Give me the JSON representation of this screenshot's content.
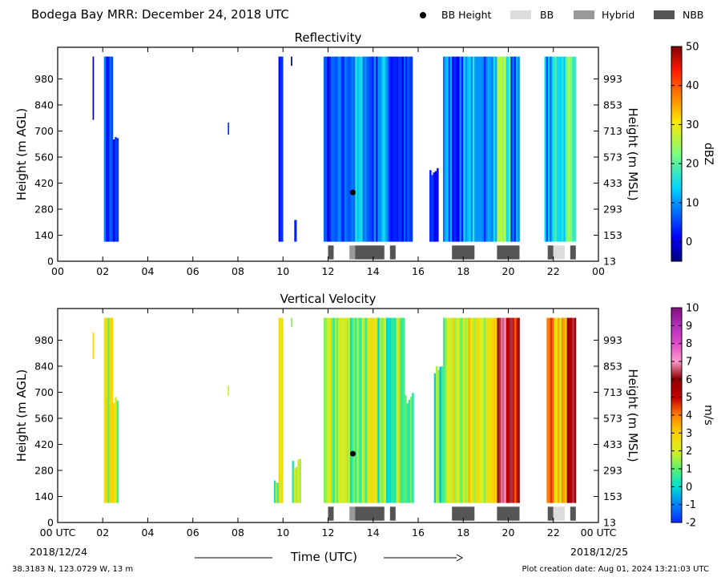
{
  "header": {
    "title": "Bodega Bay MRR:  December 24, 2018 UTC",
    "legend": [
      {
        "label": "BB Height",
        "marker": "dot",
        "color": "#000000"
      },
      {
        "label": "BB",
        "marker": "box",
        "color": "#dcdcdc"
      },
      {
        "label": "Hybrid",
        "marker": "box",
        "color": "#999999"
      },
      {
        "label": "NBB",
        "marker": "box",
        "color": "#555555"
      }
    ]
  },
  "footer": {
    "coords": "38.3183 N, 123.0729 W, 13 m",
    "creation": "Plot creation date: Aug 01, 2024 13:21:03 UTC",
    "xlabel": "Time (UTC)",
    "start_label": "00 UTC",
    "start_date": "2018/12/24",
    "end_label": "00 UTC",
    "end_date": "2018/12/25"
  },
  "chart_data": [
    {
      "type": "heatmap",
      "title": "Reflectivity",
      "ylabel": "Height (m AGL)",
      "y2label": "Height (m MSL)",
      "colorbar_label": "dBZ",
      "colorbar_ticks": [
        "0",
        "10",
        "20",
        "30",
        "40",
        "50"
      ],
      "colorbar_range": [
        -5,
        50
      ],
      "colormap": "jet",
      "xlim": [
        0,
        24
      ],
      "ylim": [
        0,
        1150
      ],
      "x_ticks": [
        "00",
        "02",
        "04",
        "06",
        "08",
        "10",
        "12",
        "14",
        "16",
        "18",
        "20",
        "22",
        "00"
      ],
      "y_ticks": [
        "0",
        "140",
        "280",
        "420",
        "560",
        "700",
        "840",
        "980"
      ],
      "y2_ticks": [
        "13",
        "153",
        "293",
        "433",
        "573",
        "713",
        "853",
        "993"
      ],
      "bb_height": [
        {
          "x": 13.1,
          "y": 370
        }
      ],
      "bb_bars": [
        {
          "start": 12.0,
          "end": 12.25,
          "class": "NBB"
        },
        {
          "start": 12.95,
          "end": 13.2,
          "class": "Hybrid"
        },
        {
          "start": 13.2,
          "end": 14.5,
          "class": "NBB"
        },
        {
          "start": 14.75,
          "end": 15.0,
          "class": "NBB"
        },
        {
          "start": 17.5,
          "end": 18.5,
          "class": "NBB"
        },
        {
          "start": 19.5,
          "end": 20.5,
          "class": "NBB"
        },
        {
          "start": 21.75,
          "end": 22.0,
          "class": "NBB"
        },
        {
          "start": 22.0,
          "end": 22.5,
          "class": "BB"
        },
        {
          "start": 22.75,
          "end": 23.0,
          "class": "NBB"
        }
      ],
      "segments": [
        {
          "start": 1.55,
          "end": 1.6,
          "ylo": 760,
          "yhi": 1100,
          "v": 2
        },
        {
          "start": 2.05,
          "end": 2.45,
          "ylo": 105,
          "yhi": 1100,
          "v": 5
        },
        {
          "start": 2.45,
          "end": 2.7,
          "ylo": 105,
          "yhi": 700,
          "v": 2
        },
        {
          "start": 7.55,
          "end": 7.6,
          "ylo": 680,
          "yhi": 760,
          "v": 1
        },
        {
          "start": 9.8,
          "end": 10.0,
          "ylo": 105,
          "yhi": 1100,
          "v": 2
        },
        {
          "start": 10.35,
          "end": 10.4,
          "ylo": 1050,
          "yhi": 1100,
          "v": 1
        },
        {
          "start": 10.5,
          "end": 10.6,
          "ylo": 105,
          "yhi": 250,
          "v": 1
        },
        {
          "start": 11.8,
          "end": 12.2,
          "ylo": 105,
          "yhi": 1100,
          "v": 3
        },
        {
          "start": 12.2,
          "end": 12.8,
          "ylo": 105,
          "yhi": 1100,
          "v": 5
        },
        {
          "start": 12.8,
          "end": 13.2,
          "ylo": 105,
          "yhi": 1100,
          "v": 9
        },
        {
          "start": 13.2,
          "end": 13.7,
          "ylo": 105,
          "yhi": 1100,
          "v": 12
        },
        {
          "start": 13.7,
          "end": 14.2,
          "ylo": 105,
          "yhi": 1100,
          "v": 6
        },
        {
          "start": 14.2,
          "end": 14.7,
          "ylo": 105,
          "yhi": 1100,
          "v": 11
        },
        {
          "start": 14.7,
          "end": 15.2,
          "ylo": 105,
          "yhi": 1100,
          "v": 4
        },
        {
          "start": 15.2,
          "end": 15.75,
          "ylo": 105,
          "yhi": 1100,
          "v": 3
        },
        {
          "start": 16.5,
          "end": 16.9,
          "ylo": 105,
          "yhi": 520,
          "v": 3
        },
        {
          "start": 17.1,
          "end": 17.5,
          "ylo": 105,
          "yhi": 1100,
          "v": 9
        },
        {
          "start": 17.5,
          "end": 18.0,
          "ylo": 105,
          "yhi": 1100,
          "v": 5
        },
        {
          "start": 18.0,
          "end": 18.5,
          "ylo": 105,
          "yhi": 1100,
          "v": 13
        },
        {
          "start": 18.5,
          "end": 19.0,
          "ylo": 105,
          "yhi": 1100,
          "v": 6
        },
        {
          "start": 19.0,
          "end": 19.5,
          "ylo": 105,
          "yhi": 1100,
          "v": 14
        },
        {
          "start": 19.5,
          "end": 19.9,
          "ylo": 105,
          "yhi": 1100,
          "v": 25
        },
        {
          "start": 19.9,
          "end": 20.1,
          "ylo": 105,
          "yhi": 1100,
          "v": 17
        },
        {
          "start": 20.1,
          "end": 20.5,
          "ylo": 105,
          "yhi": 1100,
          "v": 8
        },
        {
          "start": 21.6,
          "end": 22.0,
          "ylo": 105,
          "yhi": 1100,
          "v": 10
        },
        {
          "start": 22.0,
          "end": 22.6,
          "ylo": 105,
          "yhi": 1100,
          "v": 17
        },
        {
          "start": 22.6,
          "end": 23.0,
          "ylo": 105,
          "yhi": 1100,
          "v": 22
        }
      ]
    },
    {
      "type": "heatmap",
      "title": "Vertical Velocity",
      "ylabel": "Height (m AGL)",
      "y2label": "Height (m MSL)",
      "colorbar_label": "m/s",
      "colorbar_ticks": [
        "-2",
        "-1",
        "0",
        "1",
        "2",
        "3",
        "4",
        "5",
        "6",
        "7",
        "8",
        "9",
        "10"
      ],
      "colorbar_range": [
        -2,
        10
      ],
      "colormap": "velocity",
      "xlim": [
        0,
        24
      ],
      "ylim": [
        0,
        1150
      ],
      "x_ticks": [
        "00 UTC",
        "02",
        "04",
        "06",
        "08",
        "10",
        "12",
        "14",
        "16",
        "18",
        "20",
        "22",
        "00 UTC"
      ],
      "y_ticks": [
        "0",
        "140",
        "280",
        "420",
        "560",
        "700",
        "840",
        "980"
      ],
      "y2_ticks": [
        "13",
        "153",
        "293",
        "433",
        "573",
        "713",
        "853",
        "993"
      ],
      "bb_height": [
        {
          "x": 13.1,
          "y": 370
        }
      ],
      "bb_bars": [
        {
          "start": 12.0,
          "end": 12.25,
          "class": "NBB"
        },
        {
          "start": 12.95,
          "end": 13.2,
          "class": "Hybrid"
        },
        {
          "start": 13.2,
          "end": 14.5,
          "class": "NBB"
        },
        {
          "start": 14.75,
          "end": 15.0,
          "class": "NBB"
        },
        {
          "start": 17.5,
          "end": 18.5,
          "class": "NBB"
        },
        {
          "start": 19.5,
          "end": 20.5,
          "class": "NBB"
        },
        {
          "start": 21.75,
          "end": 22.0,
          "class": "NBB"
        },
        {
          "start": 22.0,
          "end": 22.5,
          "class": "BB"
        },
        {
          "start": 22.75,
          "end": 23.0,
          "class": "NBB"
        }
      ],
      "segments": [
        {
          "start": 1.55,
          "end": 1.6,
          "ylo": 880,
          "yhi": 1030,
          "v": 1.8
        },
        {
          "start": 2.05,
          "end": 2.45,
          "ylo": 105,
          "yhi": 1100,
          "v": 2.0
        },
        {
          "start": 2.45,
          "end": 2.7,
          "ylo": 105,
          "yhi": 700,
          "v": 1.5
        },
        {
          "start": 7.55,
          "end": 7.6,
          "ylo": 680,
          "yhi": 760,
          "v": 1.0
        },
        {
          "start": 9.6,
          "end": 9.8,
          "ylo": 105,
          "yhi": 250,
          "v": 0.8
        },
        {
          "start": 9.8,
          "end": 10.0,
          "ylo": 105,
          "yhi": 1100,
          "v": 2.3
        },
        {
          "start": 10.35,
          "end": 10.4,
          "ylo": 1050,
          "yhi": 1100,
          "v": 1.5
        },
        {
          "start": 10.4,
          "end": 10.8,
          "ylo": 105,
          "yhi": 350,
          "v": 1.2
        },
        {
          "start": 11.8,
          "end": 12.3,
          "ylo": 105,
          "yhi": 1100,
          "v": 1.3
        },
        {
          "start": 12.3,
          "end": 12.9,
          "ylo": 105,
          "yhi": 1100,
          "v": 1.8
        },
        {
          "start": 12.9,
          "end": 13.5,
          "ylo": 105,
          "yhi": 1100,
          "v": 1.2
        },
        {
          "start": 13.5,
          "end": 14.2,
          "ylo": 105,
          "yhi": 1100,
          "v": 1.6
        },
        {
          "start": 14.2,
          "end": 14.8,
          "ylo": 105,
          "yhi": 1100,
          "v": 1.0
        },
        {
          "start": 14.8,
          "end": 15.4,
          "ylo": 105,
          "yhi": 1100,
          "v": 1.5
        },
        {
          "start": 15.4,
          "end": 15.8,
          "ylo": 105,
          "yhi": 700,
          "v": 0.6
        },
        {
          "start": 16.7,
          "end": 17.1,
          "ylo": 105,
          "yhi": 850,
          "v": 0.5
        },
        {
          "start": 17.1,
          "end": 17.6,
          "ylo": 105,
          "yhi": 1100,
          "v": 1.8
        },
        {
          "start": 17.6,
          "end": 18.3,
          "ylo": 105,
          "yhi": 1100,
          "v": 2.4
        },
        {
          "start": 18.3,
          "end": 19.0,
          "ylo": 105,
          "yhi": 1100,
          "v": 1.6
        },
        {
          "start": 19.0,
          "end": 19.5,
          "ylo": 105,
          "yhi": 1100,
          "v": 2.6
        },
        {
          "start": 19.5,
          "end": 19.9,
          "ylo": 105,
          "yhi": 1100,
          "v": 5.8
        },
        {
          "start": 19.9,
          "end": 20.5,
          "ylo": 105,
          "yhi": 1100,
          "v": 5.2
        },
        {
          "start": 21.7,
          "end": 22.1,
          "ylo": 105,
          "yhi": 1100,
          "v": 3.5
        },
        {
          "start": 22.1,
          "end": 22.6,
          "ylo": 105,
          "yhi": 1100,
          "v": 2.8
        },
        {
          "start": 22.6,
          "end": 23.0,
          "ylo": 105,
          "yhi": 1100,
          "v": 5.5
        }
      ]
    }
  ]
}
